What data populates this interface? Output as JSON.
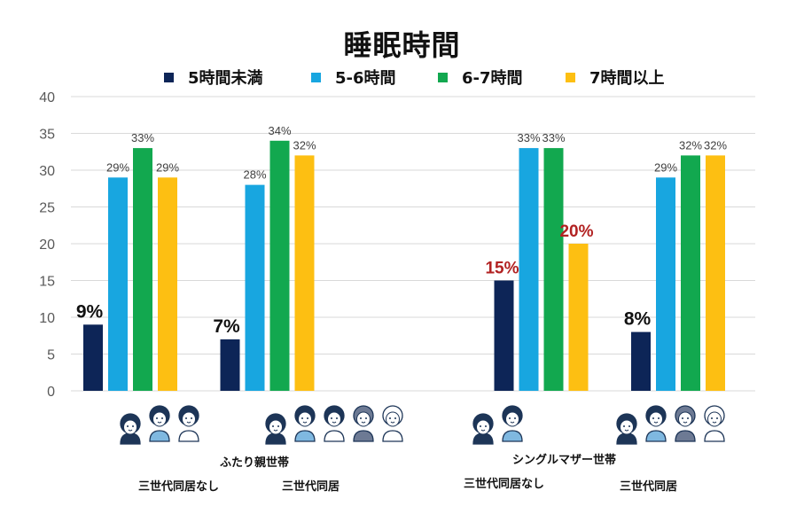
{
  "chart_data": {
    "type": "bar",
    "title": "睡眠時間",
    "xlabel": "",
    "ylabel": "",
    "ylim": [
      0,
      40
    ],
    "yticks": [
      0,
      5,
      10,
      15,
      20,
      25,
      30,
      35,
      40
    ],
    "grid": true,
    "legend_position": "top",
    "series": [
      {
        "name": "5時間未満",
        "color": "#0d2557",
        "values": [
          9,
          7,
          null,
          15,
          8
        ],
        "labels": [
          "9%",
          "7%",
          "",
          "15%",
          "8%"
        ]
      },
      {
        "name": "5-6時間",
        "color": "#18a6e0",
        "values": [
          29,
          28,
          null,
          33,
          29
        ],
        "labels": [
          "29%",
          "28%",
          "",
          "33%",
          "29%"
        ]
      },
      {
        "name": "6-7時間",
        "color": "#12a84f",
        "values": [
          33,
          34,
          null,
          33,
          32
        ],
        "labels": [
          "33%",
          "34%",
          "",
          "33%",
          "32%"
        ]
      },
      {
        "name": "7時間以上",
        "color": "#fdbf12",
        "values": [
          29,
          32,
          null,
          20,
          32
        ],
        "labels": [
          "29%",
          "32%",
          "",
          "20%",
          "32%"
        ]
      }
    ],
    "categories": [
      "三世代同居なし (ふたり親世帯)",
      "三世代同居 (ふたり親世帯)",
      "",
      "三世代同居なし (シングルマザー世帯)",
      "三世代同居 (シングルマザー世帯)"
    ],
    "emphasized_labels": [
      {
        "series": 0,
        "category": 0,
        "style": "large-black"
      },
      {
        "series": 0,
        "category": 1,
        "style": "large-black"
      },
      {
        "series": 0,
        "category": 3,
        "style": "large-red"
      },
      {
        "series": 3,
        "category": 3,
        "style": "large-red"
      },
      {
        "series": 0,
        "category": 4,
        "style": "large-black"
      }
    ],
    "highlight_color": "#b22222"
  },
  "groups": [
    {
      "name": "ふたり親世帯",
      "sub": [
        "三世代同居なし",
        "三世代同居"
      ]
    },
    {
      "name": "シングルマザー世帯",
      "sub": [
        "三世代同居なし",
        "三世代同居"
      ]
    }
  ],
  "people_icons": [
    [
      "child",
      "mother",
      "father"
    ],
    [
      "child",
      "mother",
      "father",
      "grandmother",
      "grandfather"
    ],
    [
      "child",
      "mother"
    ],
    [
      "child",
      "mother",
      "grandmother",
      "grandfather"
    ]
  ]
}
